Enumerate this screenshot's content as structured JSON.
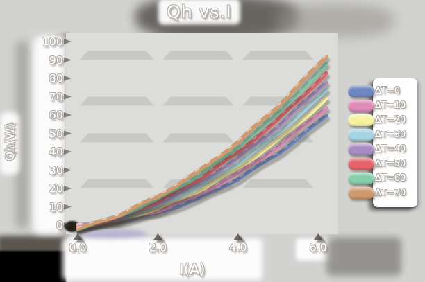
{
  "title": "Qh vs.I",
  "axes": {
    "x_label": "I(A)",
    "y_label": "Qh(W)"
  },
  "chart_data": {
    "type": "line",
    "title": "Qh vs.I",
    "xlabel": "I(A)",
    "ylabel": "Qh(W)",
    "xlim": [
      0,
      6.45
    ],
    "ylim": [
      0,
      100
    ],
    "x_ticks": [
      "0.0",
      "2.0",
      "4.0",
      "6.0"
    ],
    "y_ticks": [
      "0",
      "10",
      "20",
      "30",
      "40",
      "50",
      "60",
      "70",
      "80",
      "90",
      "100"
    ],
    "grid": "horizontal shaded bands with gaps at vertical gridlines",
    "legend_position": "right",
    "style": "hand-drawn sketch with embossed white text and drop shadows",
    "x": [
      0,
      1,
      2,
      3,
      4,
      5,
      6,
      6.2
    ],
    "series": [
      {
        "name": "ΔT=0",
        "color": "#6f86c2",
        "values": [
          0.0,
          1.8,
          6.6,
          14.4,
          25.2,
          39.0,
          55.8,
          59.5
        ]
      },
      {
        "name": "ΔT=10",
        "color": "#e08cb8",
        "values": [
          -0.3,
          2.3,
          7.9,
          16.5,
          28.1,
          42.7,
          60.3,
          64.2
        ]
      },
      {
        "name": "ΔT=20",
        "color": "#f8f2a0",
        "values": [
          -0.6,
          2.8,
          9.2,
          18.6,
          31.0,
          46.4,
          64.8,
          68.8
        ]
      },
      {
        "name": "ΔT=30",
        "color": "#a5d4e2",
        "values": [
          -0.9,
          3.3,
          10.5,
          20.7,
          33.9,
          50.1,
          69.3,
          73.5
        ]
      },
      {
        "name": "ΔT=40",
        "color": "#aa8cc5",
        "values": [
          -1.2,
          3.8,
          11.8,
          22.8,
          36.8,
          53.8,
          73.8,
          78.1
        ]
      },
      {
        "name": "ΔT=50",
        "color": "#e5646c",
        "values": [
          -1.5,
          4.3,
          13.1,
          24.9,
          39.7,
          57.5,
          78.3,
          82.8
        ]
      },
      {
        "name": "ΔT=60",
        "color": "#85ceaa",
        "values": [
          -1.8,
          4.8,
          14.4,
          27.0,
          42.6,
          61.2,
          82.8,
          87.5
        ]
      },
      {
        "name": "ΔT=70",
        "color": "#cf9a6e",
        "values": [
          -2.1,
          5.3,
          15.7,
          29.1,
          45.4,
          64.9,
          87.3,
          92.1
        ]
      }
    ]
  }
}
